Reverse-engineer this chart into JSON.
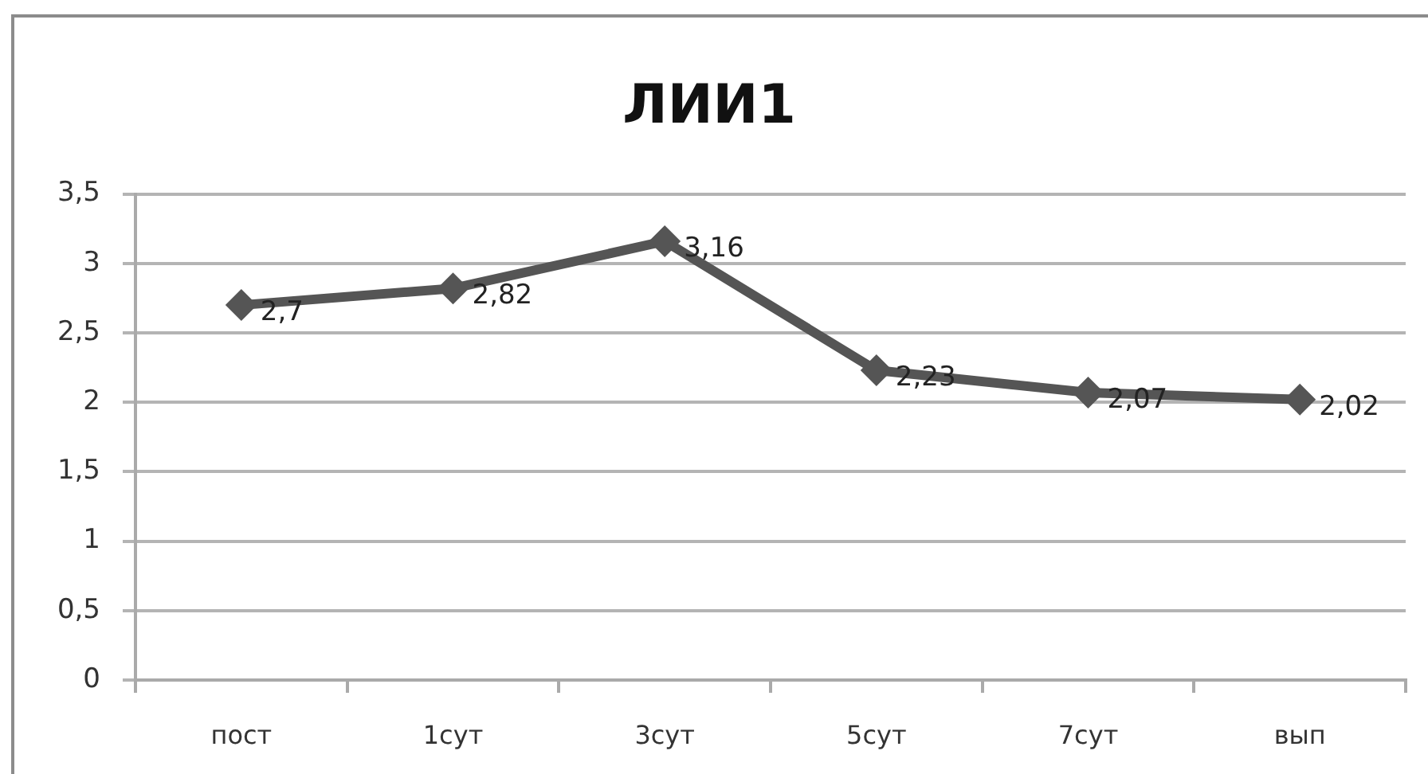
{
  "chart_data": {
    "type": "line",
    "title": "ЛИИ1",
    "categories": [
      "пост",
      "1сут",
      "3сут",
      "5сут",
      "7сут",
      "вып"
    ],
    "values": [
      2.7,
      2.82,
      3.16,
      2.23,
      2.07,
      2.02
    ],
    "color": "#555555",
    "value_labels": [
      "2,7",
      "2,82",
      "3,16",
      "2,23",
      "2,07",
      "2,02"
    ],
    "ylim": [
      0,
      3.5
    ],
    "yticks": [
      0,
      {
        "value": 0.5,
        "label": "0,5"
      },
      1,
      {
        "value": 1.5,
        "label": "1,5"
      },
      2,
      {
        "value": 2.5,
        "label": "2,5"
      },
      3,
      {
        "value": 3.5,
        "label": "3,5"
      }
    ],
    "grid": "y",
    "marker": "diamond",
    "line_style": "solid"
  }
}
